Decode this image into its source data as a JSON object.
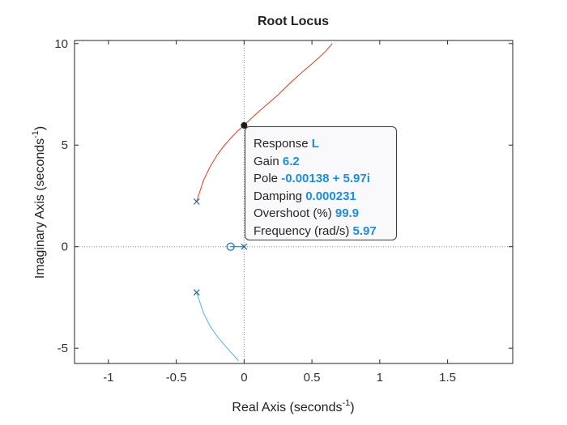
{
  "chart_data": {
    "type": "line",
    "title": "Root Locus",
    "xlabel": "Real Axis (seconds",
    "ylabel": "Imaginary Axis (seconds",
    "label_exponent": "-1",
    "xlim": [
      -1.25,
      1.98
    ],
    "ylim": [
      -5.75,
      10.15
    ],
    "x_ticks": [
      "-1",
      "-0.5",
      "0",
      "0.5",
      "1",
      "1.5"
    ],
    "y_ticks": [
      "-5",
      "0",
      "5",
      "10"
    ],
    "grid": false,
    "reference_lines": {
      "x": 0,
      "y": 0,
      "style": "dotted"
    },
    "colors": {
      "upper_branch": "#de3b1a",
      "lower_branch": "#4fb7e2",
      "markers": "#1f6aa5"
    },
    "branches": [
      {
        "color_key": "upper_branch",
        "points": [
          [
            -0.35,
            2.22
          ],
          [
            -0.3,
            3.25
          ],
          [
            -0.25,
            3.95
          ],
          [
            -0.2,
            4.5
          ],
          [
            -0.15,
            4.95
          ],
          [
            -0.1,
            5.33
          ],
          [
            -0.05,
            5.68
          ],
          [
            0.0,
            5.97
          ],
          [
            0.05,
            6.3
          ],
          [
            0.1,
            6.6
          ],
          [
            0.15,
            6.9
          ],
          [
            0.2,
            7.18
          ],
          [
            0.25,
            7.47
          ],
          [
            0.3,
            7.8
          ],
          [
            0.35,
            8.12
          ],
          [
            0.4,
            8.42
          ],
          [
            0.45,
            8.72
          ],
          [
            0.5,
            9.0
          ],
          [
            0.55,
            9.3
          ],
          [
            0.6,
            9.62
          ],
          [
            0.65,
            10.0
          ]
        ]
      },
      {
        "color_key": "lower_branch",
        "points": [
          [
            -0.35,
            -2.25
          ],
          [
            -0.3,
            -3.25
          ],
          [
            -0.25,
            -3.92
          ],
          [
            -0.2,
            -4.4
          ],
          [
            -0.15,
            -4.8
          ],
          [
            -0.1,
            -5.18
          ],
          [
            -0.05,
            -5.55
          ],
          [
            -0.04,
            -5.62
          ]
        ]
      },
      {
        "color_key": "markers",
        "points": [
          [
            -0.1,
            0.0
          ],
          [
            0.0,
            0.0
          ]
        ]
      }
    ],
    "poles": [
      [
        -0.35,
        2.22
      ],
      [
        -0.35,
        -2.25
      ],
      [
        0.0,
        0.0
      ]
    ],
    "zeros": [
      [
        -0.1,
        0.0
      ]
    ],
    "selected_point": [
      0.0,
      5.97
    ],
    "datatip": {
      "rows": [
        {
          "label": "Response",
          "value": "L"
        },
        {
          "label": "Gain",
          "value": "6.2"
        },
        {
          "label": "Pole",
          "value": "-0.00138 + 5.97i"
        },
        {
          "label": "Damping",
          "value": "0.000231"
        },
        {
          "label": "Overshoot (%)",
          "value": "99.9"
        },
        {
          "label": "Frequency (rad/s)",
          "value": "5.97"
        }
      ]
    }
  }
}
